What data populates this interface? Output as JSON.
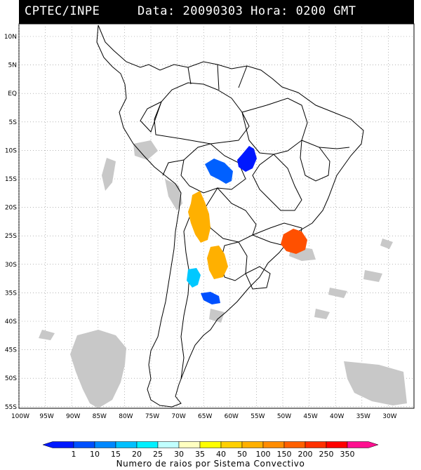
{
  "header": {
    "source": "CPTEC/INPE",
    "date_label": "Data:",
    "date_value": "20090303",
    "hour_label": "Hora:",
    "hour_value": "0200 GMT"
  },
  "map": {
    "lat_labels": [
      "10N",
      "5N",
      "EQ",
      "5S",
      "10S",
      "15S",
      "20S",
      "25S",
      "30S",
      "35S",
      "40S",
      "45S",
      "50S",
      "55S"
    ],
    "lon_labels": [
      "100W",
      "95W",
      "90W",
      "85W",
      "80W",
      "75W",
      "70W",
      "65W",
      "60W",
      "55W",
      "50W",
      "45W",
      "40W",
      "35W",
      "30W"
    ]
  },
  "legend": {
    "title": "Numero de raios por Sistema Convectivo",
    "ticks": [
      "1",
      "10",
      "15",
      "20",
      "25",
      "30",
      "35",
      "40",
      "50",
      "100",
      "150",
      "200",
      "250",
      "350"
    ],
    "colors": [
      "#0018ff",
      "#0050ff",
      "#0088ff",
      "#00c0ff",
      "#00f0ff",
      "#c0ffff",
      "#ffffc0",
      "#ffff00",
      "#ffd000",
      "#ffb000",
      "#ff8c00",
      "#ff6000",
      "#ff3000",
      "#ff0000",
      "#ff1090"
    ]
  },
  "systems": [
    {
      "name": "lightning-system-bolivia-east",
      "color": "#0018ff"
    },
    {
      "name": "lightning-system-bolivia-west",
      "color": "#0060ff"
    },
    {
      "name": "lightning-system-chaco",
      "color": "#ffb000"
    },
    {
      "name": "lightning-system-argentina-center",
      "color": "#ffb000"
    },
    {
      "name": "lightning-system-pampas-west",
      "color": "#00c8ff"
    },
    {
      "name": "lightning-system-pampas-south",
      "color": "#0050ff"
    },
    {
      "name": "lightning-system-sao-paulo",
      "color": "#ff5000"
    }
  ]
}
